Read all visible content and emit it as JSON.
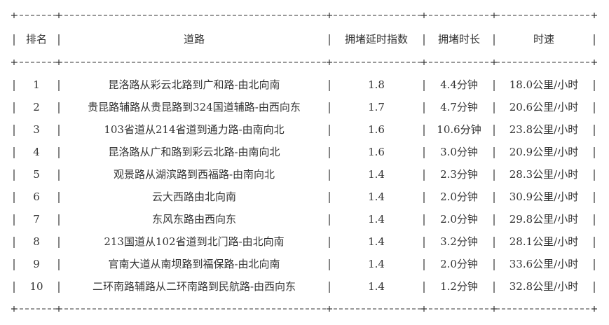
{
  "table": {
    "headers": [
      "排名",
      "道路",
      "拥堵延时指数",
      "拥堵时长",
      "时速"
    ],
    "rows": [
      [
        1,
        "昆洛路从彩云北路到广和路-由北向南",
        1.8,
        "4.4分钟",
        "18.0公里/小时"
      ],
      [
        2,
        "贵昆路辅路从贵昆路到324国道辅路-由西向东",
        1.7,
        "4.7分钟",
        "20.6公里/小时"
      ],
      [
        3,
        "103省道从214省道到通力路-由南向北",
        1.6,
        "10.6分钟",
        "23.8公里/小时"
      ],
      [
        4,
        "昆洛路从广和路到彩云北路-由南向北",
        1.6,
        "3.0分钟",
        "20.9公里/小时"
      ],
      [
        5,
        "观景路从湖滨路到西福路-由南向北",
        1.4,
        "2.3分钟",
        "28.3公里/小时"
      ],
      [
        6,
        "云大西路由北向南",
        1.4,
        "2.0分钟",
        "30.9公里/小时"
      ],
      [
        7,
        "东风东路由西向东",
        1.4,
        "2.0分钟",
        "29.8公里/小时"
      ],
      [
        8,
        "213国道从102省道到北门路-由北向南",
        1.4,
        "3.2分钟",
        "28.1公里/小时"
      ],
      [
        9,
        "官南大道从南坝路到福保路-由北向南",
        1.4,
        "2.0分钟",
        "33.6公里/小时"
      ],
      [
        10,
        "二环南路辅路从二环南路到民航路-由西向东",
        1.4,
        "1.2分钟",
        "32.8公里/小时"
      ]
    ]
  }
}
